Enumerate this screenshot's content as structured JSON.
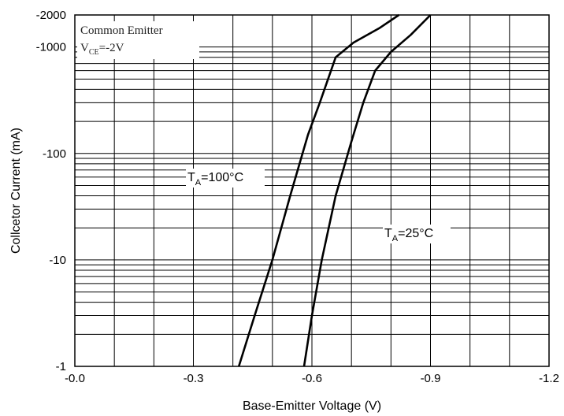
{
  "chart_data": {
    "type": "line",
    "title": "",
    "xlabel": "Base-Emitter Voltage (V)",
    "ylabel": "Collcetor Current (mA)",
    "xlim": [
      0.0,
      -1.2
    ],
    "ylim": [
      -1,
      -2000
    ],
    "yscale": "log",
    "grid": true,
    "x_ticks": [
      "-0.0",
      "-0.3",
      "-0.6",
      "-0.9",
      "-1.2"
    ],
    "y_ticks": [
      "-1",
      "-10",
      "-100",
      "-1000",
      "-2000"
    ],
    "annotation": {
      "line1": "Common Emitter",
      "line2_main": "V",
      "line2_sub": "CE",
      "line2_rest": "=-2V"
    },
    "series": [
      {
        "label_main": "T",
        "label_sub": "A",
        "label_rest": "=100°C",
        "x": [
          -0.415,
          -0.455,
          -0.5,
          -0.545,
          -0.59,
          -0.62,
          -0.66,
          -0.705,
          -0.77,
          -0.82
        ],
        "y": [
          -1,
          -3,
          -10,
          -40,
          -150,
          -300,
          -800,
          -1100,
          -1500,
          -2000
        ]
      },
      {
        "label_main": "T",
        "label_sub": "A",
        "label_rest": "=25°C",
        "x": [
          -0.58,
          -0.6,
          -0.625,
          -0.66,
          -0.7,
          -0.73,
          -0.76,
          -0.8,
          -0.85,
          -0.9
        ],
        "y": [
          -1,
          -3,
          -10,
          -40,
          -130,
          -300,
          -600,
          -900,
          -1300,
          -2000
        ]
      }
    ]
  }
}
